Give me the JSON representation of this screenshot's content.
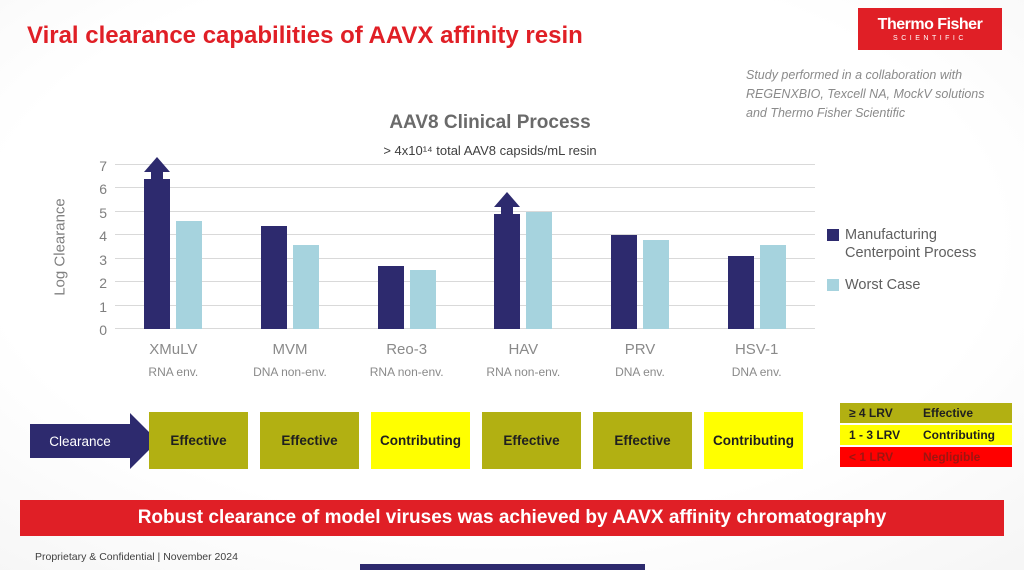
{
  "slide": {
    "title": "Viral clearance capabilities of AAVX affinity resin",
    "logo": {
      "line1": "Thermo Fisher",
      "line2": "SCIENTIFIC"
    },
    "study_note": "Study performed in a collaboration with REGENXBIO, Texcell NA, MockV solutions and Thermo Fisher Scientific",
    "banner": "Robust clearance of model viruses was achieved by AAVX affinity chromatography",
    "footer": "Proprietary & Confidential | November 2024"
  },
  "colors": {
    "brand_red": "#e01f26",
    "navy": "#2d2a6e",
    "light_blue": "#a6d3de",
    "olive": "#b2b012",
    "yellow": "#ffff00",
    "negligible_red": "#ff0000",
    "negligible_text": "#9e1510",
    "rating_text": "#1f1f1f"
  },
  "chart_data": {
    "type": "bar",
    "title": "AAV8 Clinical Process",
    "subtitle": "> 4x10¹⁴ total AAV8 capsids/mL resin",
    "ylabel": "Log Clearance",
    "ylim": [
      0,
      7
    ],
    "yticks": [
      0,
      1,
      2,
      3,
      4,
      5,
      6,
      7
    ],
    "grid": true,
    "legend_position": "right",
    "categories": [
      "XMuLV",
      "MVM",
      "Reo-3",
      "HAV",
      "PRV",
      "HSV-1"
    ],
    "category_sublabels": [
      "RNA env.",
      "DNA non-env.",
      "RNA non-env.",
      "RNA non-env.",
      "DNA env.",
      "DNA env."
    ],
    "series": [
      {
        "name": "Manufacturing Centerpoint Process",
        "color": "#2d2a6e",
        "values": [
          6.4,
          4.4,
          2.7,
          4.9,
          4.0,
          3.1
        ],
        "greater_than": [
          true,
          false,
          false,
          true,
          false,
          false
        ]
      },
      {
        "name": "Worst Case",
        "color": "#a6d3de",
        "values": [
          4.6,
          3.6,
          2.5,
          5.0,
          3.8,
          3.6
        ],
        "greater_than": [
          false,
          false,
          false,
          false,
          false,
          false
        ]
      }
    ]
  },
  "clearance_row": {
    "arrow_label": "Clearance",
    "ratings": [
      {
        "label": "Effective",
        "type": "effective"
      },
      {
        "label": "Effective",
        "type": "effective"
      },
      {
        "label": "Contributing",
        "type": "contributing"
      },
      {
        "label": "Effective",
        "type": "effective"
      },
      {
        "label": "Effective",
        "type": "effective"
      },
      {
        "label": "Contributing",
        "type": "contributing"
      }
    ],
    "lrv_key": [
      {
        "range": "≥ 4 LRV",
        "label": "Effective",
        "type": "effective"
      },
      {
        "range": "1 - 3 LRV",
        "label": "Contributing",
        "type": "contributing"
      },
      {
        "range": "< 1 LRV",
        "label": "Negligible",
        "type": "negligible"
      }
    ]
  }
}
